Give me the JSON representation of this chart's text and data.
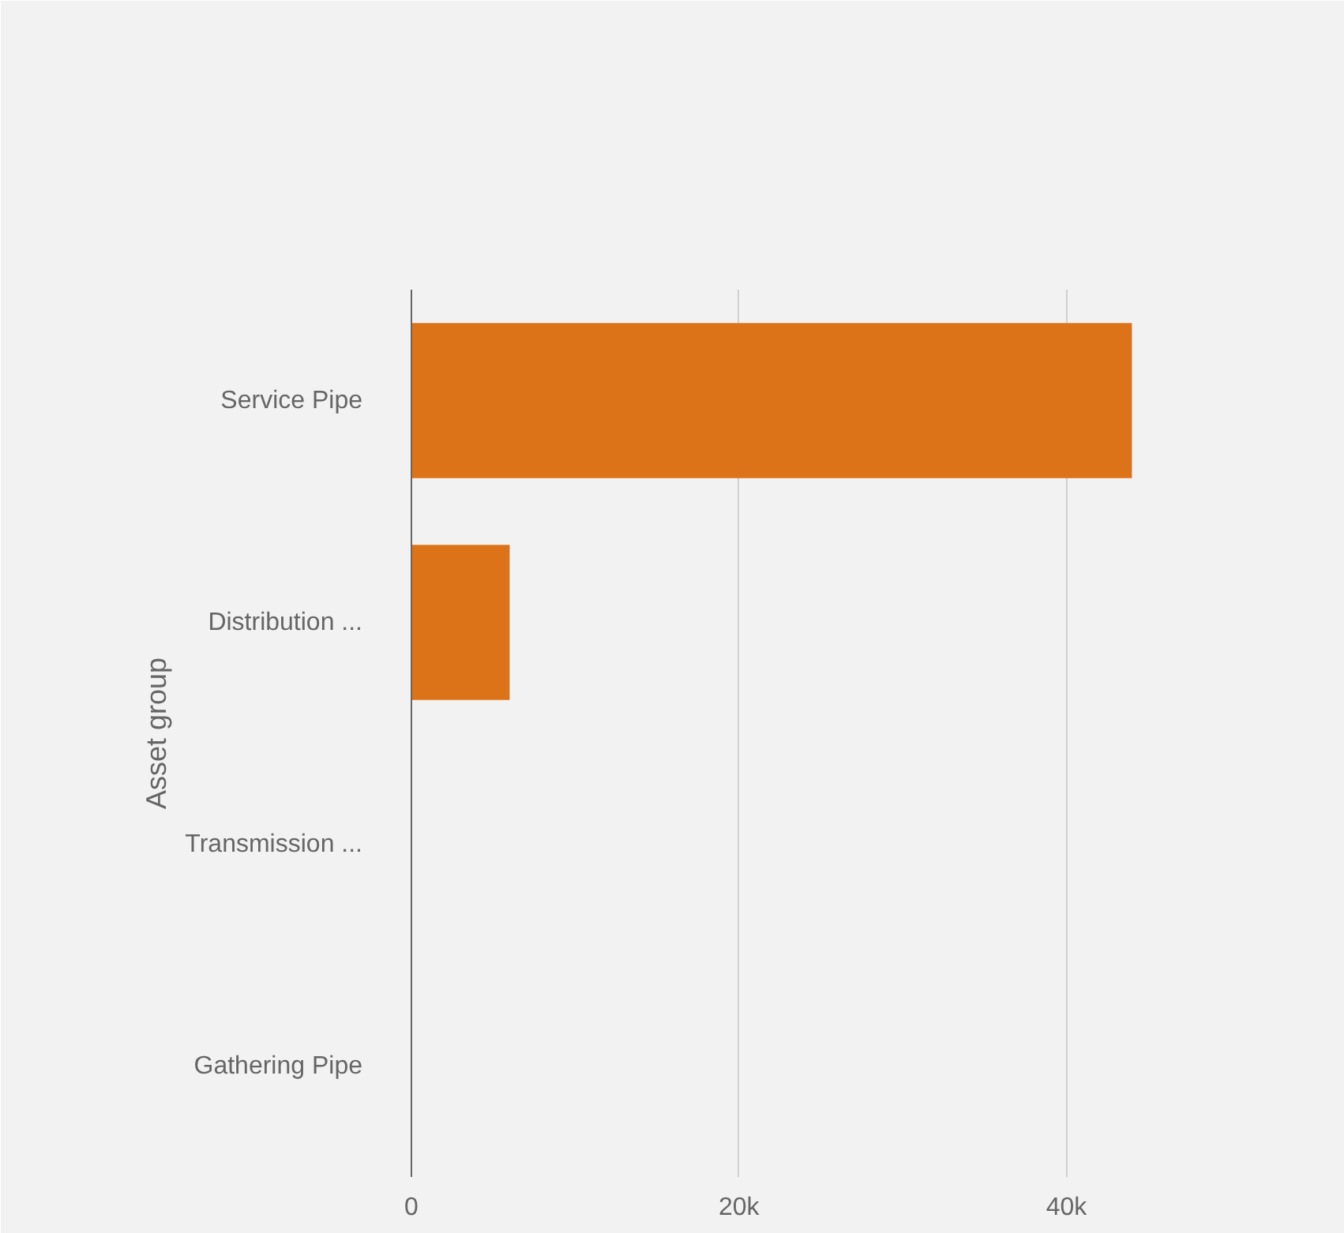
{
  "chart_data": {
    "type": "bar",
    "orientation": "horizontal",
    "ylabel": "Asset group",
    "categories": [
      "Service Pipe",
      "Distribution ...",
      "Transmission ...",
      "Gathering Pipe"
    ],
    "values": [
      44000,
      6000,
      0,
      0
    ],
    "color": "#dc7318",
    "xlim": [
      0,
      57000
    ],
    "xticks": [
      0,
      {
        "value": 20000,
        "label": "20k"
      },
      {
        "value": 40000,
        "label": "40k"
      }
    ],
    "grid": "x"
  }
}
